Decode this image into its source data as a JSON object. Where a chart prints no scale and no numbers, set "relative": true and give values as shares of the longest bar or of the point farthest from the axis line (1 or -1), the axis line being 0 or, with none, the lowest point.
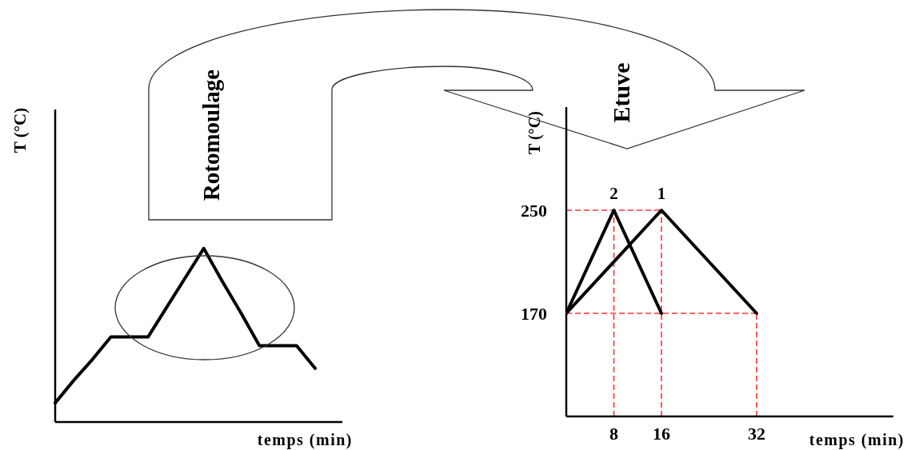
{
  "chart_data": [
    {
      "type": "line",
      "relative": true,
      "xlabel": "temps (min)",
      "ylabel": "T (°C)",
      "annotations": [
        "Rotomoulage"
      ],
      "marker": "none",
      "categories": [
        null,
        null,
        null,
        null,
        null,
        null,
        null,
        null,
        null,
        null,
        null,
        null,
        null,
        null,
        null
      ],
      "series": [
        {
          "color": "#000000",
          "values": [
            0.11,
            0.24,
            0.36,
            0.49,
            0.49,
            0.49,
            0.66,
            0.83,
            1,
            0.81,
            0.63,
            0.44,
            0.44,
            0.44,
            0.31
          ]
        }
      ]
    },
    {
      "type": "line",
      "xlabel": "temps (min)",
      "ylabel": "T (°C)",
      "annotations": [
        "Etuve"
      ],
      "marker": "none",
      "xlim": [
        0,
        55
      ],
      "xticks": [
        8,
        16,
        32
      ],
      "ylim": [
        90,
        330
      ],
      "yticks": [
        170,
        250
      ],
      "series": [
        {
          "name": "1",
          "color": "#000000",
          "x": [
            0,
            16,
            32
          ],
          "values": [
            170,
            250,
            170
          ]
        },
        {
          "name": "2",
          "color": "#000000",
          "x": [
            0,
            8,
            16
          ],
          "values": [
            170,
            250,
            170
          ]
        }
      ],
      "ref_lines": [
        {
          "axis": "y",
          "value": 250,
          "color": "#ff3333",
          "line_style": "dashed"
        },
        {
          "axis": "y",
          "value": 170,
          "color": "#ff3333",
          "line_style": "dashed"
        },
        {
          "axis": "x",
          "value": 8,
          "color": "#ff3333",
          "line_style": "dashed"
        },
        {
          "axis": "x",
          "value": 16,
          "color": "#ff3333",
          "line_style": "dashed"
        },
        {
          "axis": "x",
          "value": 32,
          "color": "#ff3333",
          "line_style": "dashed"
        }
      ]
    }
  ]
}
